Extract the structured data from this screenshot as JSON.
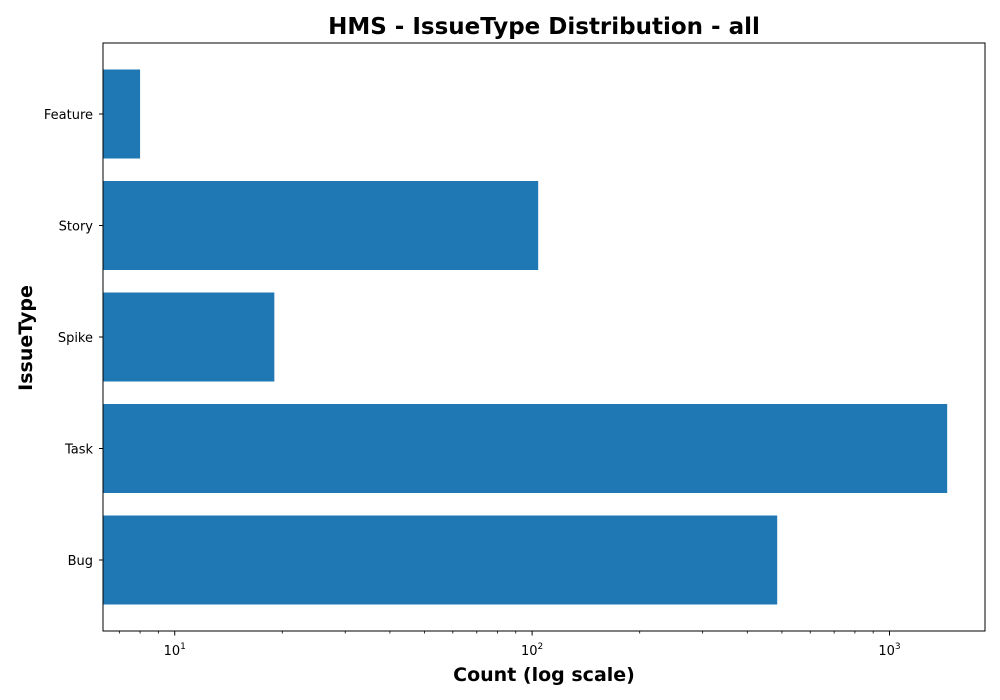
{
  "chart_data": {
    "type": "bar",
    "orientation": "horizontal",
    "title": "HMS - IssueType Distribution - all",
    "xlabel": "Count (log scale)",
    "ylabel": "IssueType",
    "x_scale": "log",
    "xlim": [
      6.3,
      1850
    ],
    "categories": [
      "Bug",
      "Task",
      "Spike",
      "Story",
      "Feature"
    ],
    "values": [
      485,
      1450,
      19,
      104,
      8
    ],
    "x_ticks": [
      {
        "base": "10",
        "exp": "1",
        "value": 10
      },
      {
        "base": "10",
        "exp": "2",
        "value": 100
      },
      {
        "base": "10",
        "exp": "3",
        "value": 1000
      }
    ],
    "bar_color": "#1f77b4",
    "grid": false,
    "legend": "none"
  }
}
